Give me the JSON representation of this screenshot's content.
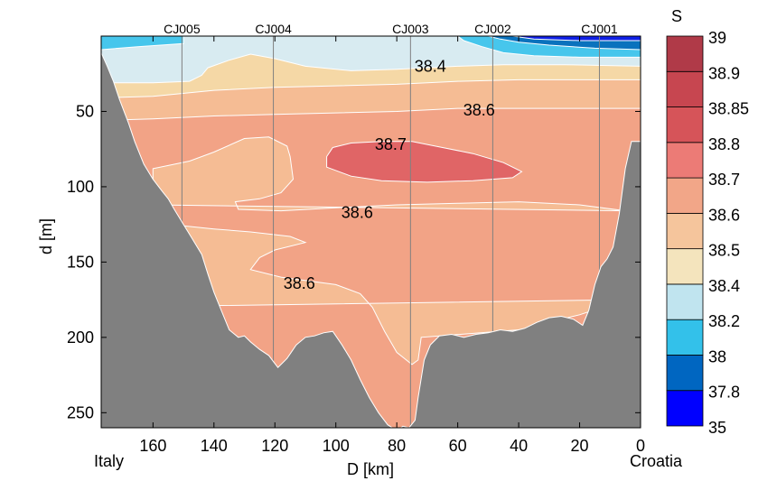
{
  "chart_data": {
    "type": "contour-section",
    "title": "",
    "xlabel": "D [km]",
    "ylabel": "d [m]",
    "xlim": [
      177,
      0
    ],
    "ylim": [
      260,
      0
    ],
    "x_reversed": true,
    "y_reversed": true,
    "xticks": [
      160,
      140,
      120,
      100,
      80,
      60,
      40,
      20,
      0
    ],
    "yticks": [
      50,
      100,
      150,
      200,
      250
    ],
    "x_end_labels": {
      "left": "Italy",
      "right": "Croatia"
    },
    "stations": [
      {
        "name": "CJ005",
        "x": 150.5
      },
      {
        "name": "CJ004",
        "x": 120.5
      },
      {
        "name": "CJ003",
        "x": 75.5
      },
      {
        "name": "CJ002",
        "x": 48.5
      },
      {
        "name": "CJ001",
        "x": 13.5
      }
    ],
    "colorbar": {
      "title": "S",
      "levels": [
        "35",
        "37.8",
        "38",
        "38.2",
        "38.4",
        "38.5",
        "38.6",
        "38.7",
        "38.8",
        "38.85",
        "38.9",
        "39"
      ],
      "colors": [
        "#0000ff",
        "#0066c1",
        "#33c1ea",
        "#c0e4ef",
        "#f4e4bd",
        "#f5c59c",
        "#f2a688",
        "#ec7b76",
        "#d65459",
        "#c74650",
        "#b03a48"
      ]
    },
    "contour_labels": [
      {
        "text": "38.4",
        "x": 69,
        "y": 20
      },
      {
        "text": "38.6",
        "x": 53,
        "y": 49
      },
      {
        "text": "38.7",
        "x": 82,
        "y": 72
      },
      {
        "text": "38.6",
        "x": 93,
        "y": 117
      },
      {
        "text": "38.6",
        "x": 112,
        "y": 164
      }
    ],
    "bathymetry": [
      [
        177,
        11
      ],
      [
        175,
        20
      ],
      [
        173,
        30
      ],
      [
        171,
        42
      ],
      [
        168,
        58
      ],
      [
        166,
        70
      ],
      [
        163,
        85
      ],
      [
        160,
        95
      ],
      [
        157,
        103
      ],
      [
        155,
        108
      ],
      [
        153,
        115
      ],
      [
        150,
        125
      ],
      [
        147,
        135
      ],
      [
        144,
        145
      ],
      [
        142,
        158
      ],
      [
        140,
        170
      ],
      [
        138,
        180
      ],
      [
        135,
        195
      ],
      [
        132,
        200
      ],
      [
        130,
        199
      ],
      [
        128,
        203
      ],
      [
        125,
        208
      ],
      [
        122,
        212
      ],
      [
        119,
        220
      ],
      [
        116,
        214
      ],
      [
        113,
        205
      ],
      [
        110,
        200
      ],
      [
        107,
        199
      ],
      [
        104,
        197
      ],
      [
        101,
        196
      ],
      [
        98,
        205
      ],
      [
        95,
        215
      ],
      [
        92,
        228
      ],
      [
        89,
        240
      ],
      [
        86,
        250
      ],
      [
        83,
        258
      ],
      [
        80,
        262
      ],
      [
        78,
        259
      ],
      [
        76,
        260
      ],
      [
        74,
        255
      ],
      [
        73,
        240
      ],
      [
        71,
        215
      ],
      [
        69,
        205
      ],
      [
        66,
        199
      ],
      [
        62,
        198
      ],
      [
        58,
        200
      ],
      [
        54,
        198
      ],
      [
        50,
        197
      ],
      [
        46,
        195
      ],
      [
        42,
        196
      ],
      [
        38,
        194
      ],
      [
        34,
        190
      ],
      [
        30,
        187
      ],
      [
        26,
        186
      ],
      [
        22,
        188
      ],
      [
        19,
        192
      ],
      [
        17,
        182
      ],
      [
        15,
        165
      ],
      [
        13,
        153
      ],
      [
        11,
        148
      ],
      [
        9,
        140
      ],
      [
        7,
        118
      ],
      [
        5,
        88
      ],
      [
        3,
        70
      ],
      [
        0,
        70
      ]
    ],
    "regions": [
      {
        "level": "38.2-38.4",
        "color": "#d8ebf1",
        "polygon": [
          [
            177,
            0
          ],
          [
            0,
            0
          ],
          [
            0,
            260
          ],
          [
            177,
            260
          ]
        ]
      },
      {
        "level": "38.4-38.5",
        "color": "#f5d8a6",
        "polygon": [
          [
            177,
            31
          ],
          [
            160,
            31
          ],
          [
            148,
            30
          ],
          [
            144,
            26
          ],
          [
            142,
            21
          ],
          [
            135,
            16
          ],
          [
            128,
            12
          ],
          [
            120,
            15
          ],
          [
            110,
            20
          ],
          [
            95,
            23
          ],
          [
            80,
            22
          ],
          [
            60,
            20
          ],
          [
            45,
            19
          ],
          [
            25,
            19
          ],
          [
            0,
            20
          ],
          [
            0,
            260
          ],
          [
            177,
            260
          ]
        ]
      },
      {
        "level": "38.5-38.6",
        "color": "#f5bc94",
        "polygon": [
          [
            177,
            41
          ],
          [
            160,
            40
          ],
          [
            140,
            36
          ],
          [
            120,
            34
          ],
          [
            100,
            33
          ],
          [
            80,
            32
          ],
          [
            60,
            30
          ],
          [
            40,
            29
          ],
          [
            20,
            29
          ],
          [
            0,
            29
          ],
          [
            0,
            260
          ],
          [
            177,
            260
          ]
        ]
      },
      {
        "level": "38.6-38.7",
        "color": "#f2a386",
        "polygon": [
          [
            177,
            56
          ],
          [
            160,
            55
          ],
          [
            140,
            53
          ],
          [
            120,
            52
          ],
          [
            100,
            51
          ],
          [
            80,
            50
          ],
          [
            60,
            48
          ],
          [
            40,
            48
          ],
          [
            20,
            48
          ],
          [
            0,
            48
          ],
          [
            0,
            260
          ],
          [
            177,
            260
          ]
        ]
      },
      {
        "level": "38.5-38.6",
        "color": "#f5bc94",
        "polygon": [
          [
            160,
            88
          ],
          [
            148,
            83
          ],
          [
            140,
            77
          ],
          [
            130,
            68
          ],
          [
            122,
            67
          ],
          [
            116,
            73
          ],
          [
            115,
            80
          ],
          [
            114,
            95
          ],
          [
            118,
            104
          ],
          [
            125,
            108
          ],
          [
            133,
            110
          ],
          [
            132,
            115
          ],
          [
            118,
            116
          ],
          [
            100,
            114
          ],
          [
            80,
            112
          ],
          [
            60,
            111
          ],
          [
            40,
            110
          ],
          [
            20,
            112
          ],
          [
            5,
            116
          ],
          [
            5,
            175
          ],
          [
            177,
            180
          ],
          [
            170,
            150
          ],
          [
            160,
            130
          ],
          [
            150,
            126
          ],
          [
            140,
            128
          ],
          [
            128,
            130
          ],
          [
            115,
            133
          ],
          [
            110,
            137
          ],
          [
            120,
            142
          ],
          [
            125,
            147
          ],
          [
            128,
            155
          ],
          [
            118,
            160
          ],
          [
            100,
            165
          ],
          [
            92,
            171
          ],
          [
            88,
            180
          ],
          [
            84,
            196
          ],
          [
            80,
            210
          ],
          [
            75,
            218
          ],
          [
            73,
            215
          ],
          [
            72,
            200
          ],
          [
            40,
            195
          ],
          [
            20,
            185
          ],
          [
            5,
            175
          ],
          [
            5,
            116
          ],
          [
            160,
            112
          ]
        ]
      },
      {
        "level": "38.7-38.8",
        "color": "#e06566",
        "polygon": [
          [
            103,
            80
          ],
          [
            101,
            74
          ],
          [
            95,
            71
          ],
          [
            85,
            70
          ],
          [
            75,
            70
          ],
          [
            65,
            74
          ],
          [
            55,
            78
          ],
          [
            45,
            84
          ],
          [
            39,
            90
          ],
          [
            42,
            94
          ],
          [
            55,
            96
          ],
          [
            70,
            97
          ],
          [
            85,
            96
          ],
          [
            95,
            93
          ],
          [
            103,
            87
          ]
        ]
      },
      {
        "level": "38.0-38.2",
        "color": "#47c6ec",
        "polygon": [
          [
            177,
            0
          ],
          [
            150,
            0
          ],
          [
            150,
            5
          ],
          [
            165,
            7
          ],
          [
            177,
            9
          ]
        ]
      },
      {
        "level": "38.0-38.2",
        "color": "#47c6ec",
        "polygon": [
          [
            60,
            0
          ],
          [
            0,
            0
          ],
          [
            0,
            14
          ],
          [
            20,
            14
          ],
          [
            35,
            13
          ],
          [
            45,
            11
          ],
          [
            52,
            7
          ],
          [
            58,
            3
          ]
        ]
      },
      {
        "level": "37.8-38.0",
        "color": "#0a72bd",
        "polygon": [
          [
            50,
            0
          ],
          [
            0,
            0
          ],
          [
            0,
            9
          ],
          [
            15,
            8
          ],
          [
            30,
            6
          ],
          [
            40,
            4
          ],
          [
            46,
            2
          ]
        ]
      },
      {
        "level": "35-37.8",
        "color": "#0f20e5",
        "polygon": [
          [
            42,
            0
          ],
          [
            0,
            0
          ],
          [
            0,
            3
          ],
          [
            20,
            3
          ],
          [
            35,
            2
          ]
        ]
      }
    ],
    "bathymetry_color": "#808080"
  }
}
